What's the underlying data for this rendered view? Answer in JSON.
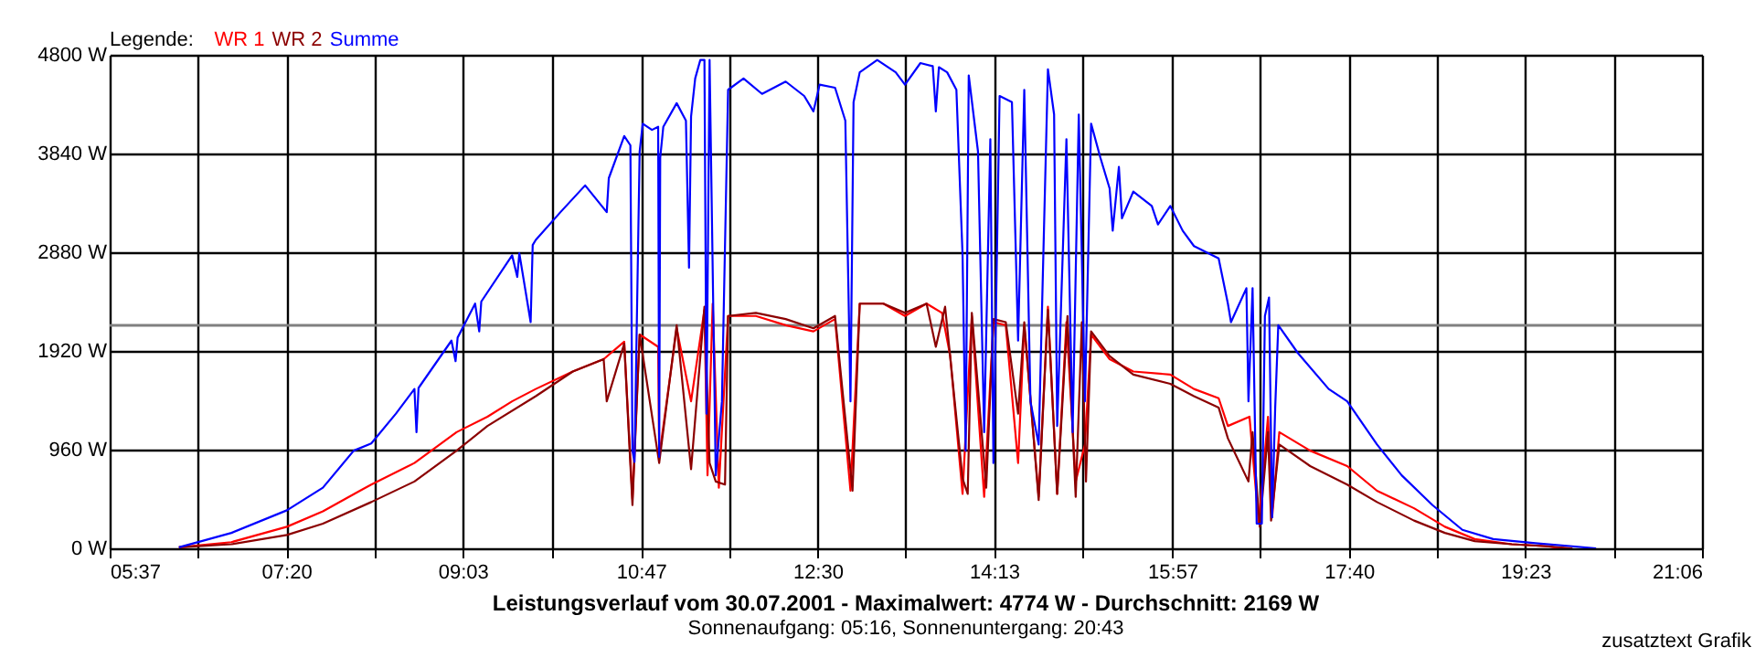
{
  "chart_data": {
    "type": "line",
    "title": "Leistungsverlauf vom 30.07.2001 - Maximalwert: 4774 W - Durchschnitt: 2169 W",
    "subtitle": "Sonnenaufgang: 05:16, Sonnenuntergang: 20:43",
    "legend_title": "Legende:",
    "annotations": [
      "zusatztext Grafik"
    ],
    "xlim": [
      5.6167,
      21.1
    ],
    "xticks": [
      {
        "value": 5.6167,
        "label": "05:37"
      },
      {
        "value": 6.4769,
        "label": null
      },
      {
        "value": 7.3333,
        "label": "07:20"
      },
      {
        "value": 8.1972,
        "label": null
      },
      {
        "value": 9.05,
        "label": "09:03"
      },
      {
        "value": 9.9176,
        "label": null
      },
      {
        "value": 10.7833,
        "label": "10:47"
      },
      {
        "value": 11.638,
        "label": null
      },
      {
        "value": 12.5,
        "label": "12:30"
      },
      {
        "value": 13.3583,
        "label": null
      },
      {
        "value": 14.2167,
        "label": "14:13"
      },
      {
        "value": 15.0787,
        "label": null
      },
      {
        "value": 15.95,
        "label": "15:57"
      },
      {
        "value": 16.7991,
        "label": null
      },
      {
        "value": 17.6667,
        "label": "17:40"
      },
      {
        "value": 18.5194,
        "label": null
      },
      {
        "value": 19.3833,
        "label": "19:23"
      },
      {
        "value": 20.2398,
        "label": null
      },
      {
        "value": 21.1,
        "label": "21:06"
      }
    ],
    "ylim": [
      0,
      4800
    ],
    "yticks": [
      {
        "value": 0,
        "label": "0 W"
      },
      {
        "value": 960,
        "label": "960 W"
      },
      {
        "value": 1920,
        "label": "1920 W"
      },
      {
        "value": 2880,
        "label": "2880 W"
      },
      {
        "value": 3840,
        "label": "3840 W"
      },
      {
        "value": 4800,
        "label": "4800 W"
      }
    ],
    "grid": true,
    "legend": "top left",
    "ref_lines": [
      {
        "axis": "y",
        "value": 2169,
        "color": "#808080"
      }
    ],
    "series": [
      {
        "name": "WR 1",
        "color": "#ff0000",
        "x": [
          6.29,
          6.8,
          7.34,
          7.69,
          8.05,
          8.16,
          8.58,
          8.99,
          9.29,
          9.53,
          9.76,
          10.12,
          10.42,
          10.62,
          10.7,
          10.77,
          10.95,
          10.96,
          11.13,
          11.27,
          11.4,
          11.43,
          11.48,
          11.54,
          11.63,
          11.9,
          12.19,
          12.46,
          12.67,
          12.82,
          12.91,
          13.14,
          13.35,
          13.56,
          13.71,
          13.79,
          13.91,
          14.0,
          14.12,
          14.21,
          14.33,
          14.45,
          14.51,
          14.65,
          14.74,
          14.83,
          14.92,
          15.01,
          15.1,
          15.16,
          15.34,
          15.57,
          15.93,
          16.16,
          16.4,
          16.49,
          16.7,
          16.79,
          16.88,
          16.92,
          16.99,
          17.29,
          17.65,
          17.94,
          18.3,
          18.6,
          18.89,
          19.25,
          19.6,
          19.72
        ],
        "values": [
          10,
          60,
          210,
          360,
          560,
          620,
          830,
          1130,
          1280,
          1430,
          1550,
          1720,
          1840,
          2010,
          480,
          2080,
          1960,
          890,
          2140,
          1430,
          2320,
          710,
          2380,
          590,
          2260,
          2260,
          2170,
          2110,
          2230,
          560,
          2380,
          2380,
          2260,
          2380,
          2290,
          1870,
          530,
          2260,
          500,
          2200,
          2170,
          830,
          2170,
          500,
          2350,
          530,
          2200,
          650,
          1010,
          2080,
          1840,
          1720,
          1690,
          1550,
          1460,
          1190,
          1280,
          240,
          1280,
          300,
          1130,
          950,
          800,
          560,
          390,
          210,
          90,
          40,
          20,
          0
        ]
      },
      {
        "name": "WR 2",
        "color": "#8b0000",
        "x": [
          6.29,
          6.8,
          7.34,
          7.69,
          8.16,
          8.58,
          8.99,
          9.29,
          9.76,
          10.12,
          10.42,
          10.45,
          10.62,
          10.7,
          10.77,
          10.96,
          11.13,
          11.27,
          11.4,
          11.45,
          11.51,
          11.6,
          11.63,
          11.9,
          12.19,
          12.46,
          12.67,
          12.84,
          12.91,
          13.14,
          13.35,
          13.56,
          13.65,
          13.74,
          13.91,
          13.96,
          14.0,
          14.14,
          14.21,
          14.33,
          14.45,
          14.51,
          14.65,
          14.74,
          14.83,
          14.93,
          15.01,
          15.07,
          15.11,
          15.16,
          15.34,
          15.57,
          15.93,
          16.16,
          16.4,
          16.49,
          16.69,
          16.73,
          16.8,
          16.88,
          16.91,
          16.99,
          17.29,
          17.65,
          17.94,
          18.3,
          18.6,
          18.89,
          19.25,
          19.6,
          19.84
        ],
        "values": [
          10,
          40,
          130,
          240,
          450,
          650,
          950,
          1190,
          1480,
          1720,
          1840,
          1430,
          1990,
          420,
          2080,
          830,
          2170,
          770,
          2350,
          830,
          650,
          620,
          2260,
          2290,
          2230,
          2140,
          2260,
          560,
          2380,
          2380,
          2290,
          2380,
          1960,
          2350,
          680,
          530,
          2290,
          590,
          2230,
          2200,
          1310,
          2200,
          470,
          2320,
          530,
          2260,
          500,
          2200,
          650,
          2110,
          1870,
          1690,
          1600,
          1480,
          1370,
          1070,
          650,
          1130,
          210,
          1130,
          270,
          1010,
          800,
          620,
          450,
          270,
          150,
          70,
          40,
          20,
          0
        ]
      },
      {
        "name": "Summe",
        "color": "#0000ff",
        "x": [
          6.29,
          6.51,
          6.8,
          7.34,
          7.69,
          7.99,
          8.16,
          8.4,
          8.58,
          8.6,
          8.62,
          8.94,
          8.98,
          9.0,
          9.17,
          9.21,
          9.23,
          9.53,
          9.58,
          9.6,
          9.71,
          9.73,
          9.76,
          10.0,
          10.24,
          10.45,
          10.47,
          10.62,
          10.68,
          10.7,
          10.72,
          10.77,
          10.8,
          10.89,
          10.95,
          10.96,
          10.97,
          11.0,
          11.13,
          11.22,
          11.25,
          11.27,
          11.31,
          11.36,
          11.4,
          11.42,
          11.45,
          11.51,
          11.57,
          11.63,
          11.78,
          11.96,
          12.19,
          12.37,
          12.46,
          12.52,
          12.67,
          12.77,
          12.82,
          12.85,
          12.91,
          13.08,
          13.26,
          13.35,
          13.5,
          13.62,
          13.65,
          13.68,
          13.76,
          13.85,
          13.91,
          13.94,
          13.97,
          14.06,
          14.12,
          14.18,
          14.21,
          14.27,
          14.39,
          14.45,
          14.51,
          14.57,
          14.65,
          14.74,
          14.8,
          14.83,
          14.92,
          14.98,
          15.04,
          15.1,
          15.16,
          15.25,
          15.34,
          15.37,
          15.43,
          15.46,
          15.57,
          15.75,
          15.81,
          15.93,
          16.05,
          16.16,
          16.4,
          16.49,
          16.52,
          16.67,
          16.69,
          16.73,
          16.77,
          16.82,
          16.85,
          16.89,
          16.92,
          16.95,
          16.98,
          17.17,
          17.47,
          17.65,
          17.94,
          18.18,
          18.48,
          18.77,
          19.07,
          19.48,
          19.84,
          20.07
        ],
        "values": [
          10,
          70,
          150,
          370,
          590,
          950,
          1020,
          1310,
          1550,
          1130,
          1560,
          2020,
          1820,
          2050,
          2380,
          2110,
          2400,
          2850,
          2640,
          2870,
          2200,
          2950,
          3000,
          3270,
          3530,
          3270,
          3600,
          4010,
          3920,
          950,
          840,
          3860,
          4130,
          4070,
          4100,
          890,
          3800,
          4100,
          4330,
          4160,
          2730,
          4200,
          4570,
          4750,
          4750,
          1310,
          4750,
          710,
          1430,
          4460,
          4570,
          4420,
          4540,
          4400,
          4250,
          4510,
          4480,
          4160,
          1430,
          4340,
          4630,
          4750,
          4630,
          4510,
          4720,
          4690,
          4250,
          4680,
          4630,
          4460,
          2850,
          950,
          4600,
          3860,
          1130,
          3980,
          830,
          4400,
          4340,
          2020,
          4460,
          1430,
          1010,
          4660,
          4220,
          1190,
          3980,
          1130,
          4220,
          1430,
          4130,
          3800,
          3500,
          3090,
          3710,
          3210,
          3470,
          3330,
          3150,
          3330,
          3090,
          2940,
          2820,
          2380,
          2200,
          2530,
          1430,
          2530,
          240,
          240,
          2260,
          2440,
          300,
          1370,
          2170,
          1900,
          1550,
          1430,
          1010,
          710,
          420,
          180,
          90,
          50,
          20,
          0
        ]
      }
    ]
  }
}
